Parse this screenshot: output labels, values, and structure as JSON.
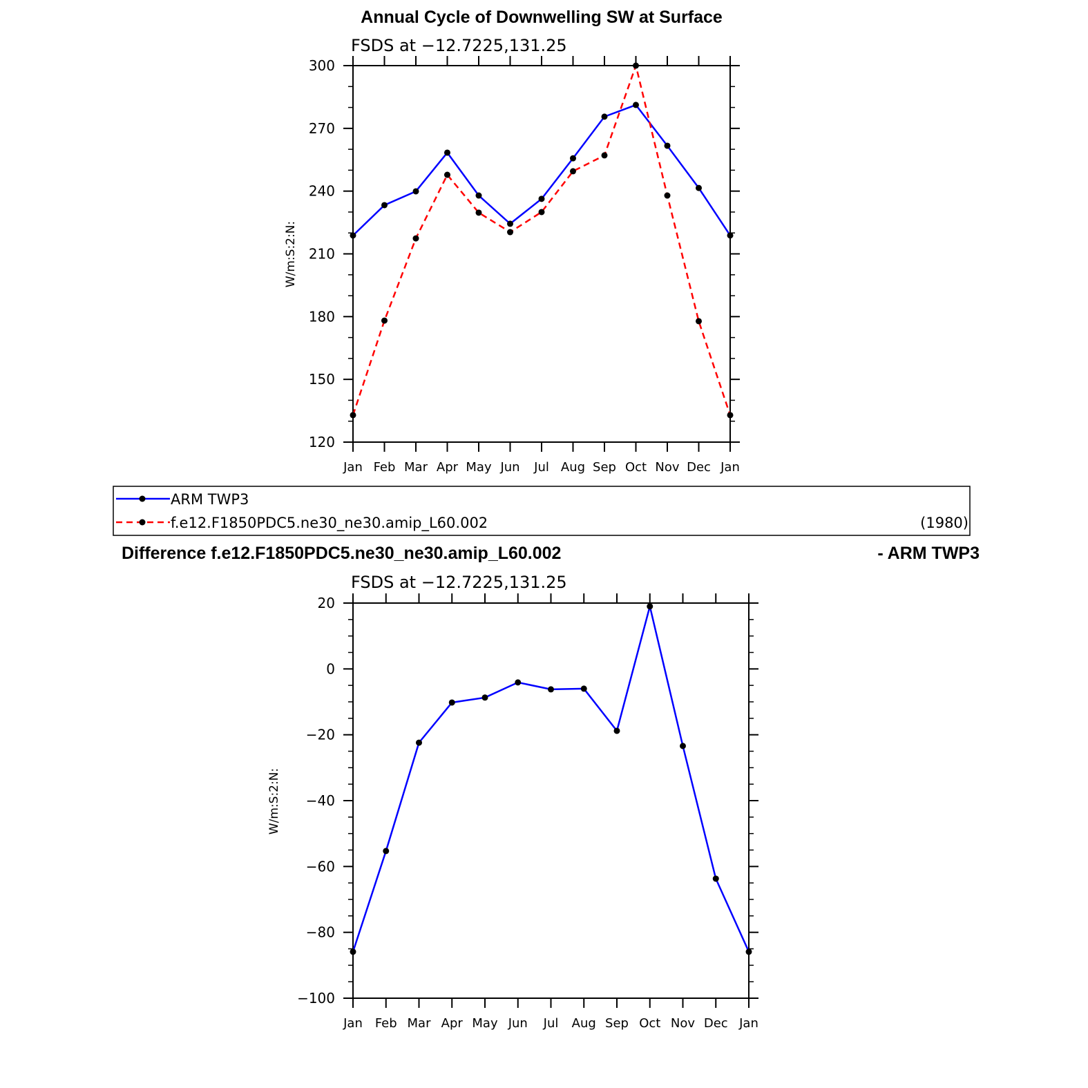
{
  "chart_data": [
    {
      "type": "line",
      "title": "Annual Cycle of Downwelling SW at Surface",
      "subtitle": "FSDS at −12.7225,131.25",
      "xlabel": "",
      "ylabel": "W/m:S:2:N:",
      "categories": [
        "Jan",
        "Feb",
        "Mar",
        "Apr",
        "May",
        "Jun",
        "Jul",
        "Aug",
        "Sep",
        "Oct",
        "Nov",
        "Dec",
        "Jan"
      ],
      "ylim": [
        120,
        300
      ],
      "yticks": [
        120,
        150,
        180,
        210,
        240,
        270,
        300
      ],
      "yminor": 10,
      "series": [
        {
          "name": "ARM TWP3",
          "color": "#0000ff",
          "dash": "solid",
          "values": [
            218.8,
            233.3,
            239.9,
            258.4,
            237.9,
            224.4,
            236.3,
            255.7,
            275.6,
            281.2,
            261.7,
            241.5,
            218.8
          ]
        },
        {
          "name": "f.e12.F1850PDC5.ne30_ne30.amip_L60.002",
          "color": "#ff0000",
          "dash": "dashed",
          "values": [
            132.9,
            178.1,
            217.4,
            247.8,
            229.7,
            220.4,
            230.0,
            249.5,
            257.1,
            300.0,
            237.9,
            177.8,
            132.9
          ]
        }
      ],
      "legend": {
        "placement": "below",
        "note": "(1980)"
      }
    },
    {
      "type": "line",
      "title_left": "Difference f.e12.F1850PDC5.ne30_ne30.amip_L60.002",
      "title_right": "- ARM TWP3",
      "subtitle": "FSDS at −12.7225,131.25",
      "xlabel": "",
      "ylabel": "W/m:S:2:N:",
      "categories": [
        "Jan",
        "Feb",
        "Mar",
        "Apr",
        "May",
        "Jun",
        "Jul",
        "Aug",
        "Sep",
        "Oct",
        "Nov",
        "Dec",
        "Jan"
      ],
      "ylim": [
        -100,
        20
      ],
      "yticks": [
        -100,
        -80,
        -60,
        -40,
        -20,
        0,
        20
      ],
      "yminor": 5,
      "series": [
        {
          "name": "Difference",
          "color": "#0000ff",
          "dash": "solid",
          "values": [
            -85.9,
            -55.3,
            -22.4,
            -10.2,
            -8.7,
            -4.1,
            -6.2,
            -6.0,
            -18.8,
            19.0,
            -23.4,
            -63.7,
            -85.9
          ]
        }
      ]
    }
  ]
}
